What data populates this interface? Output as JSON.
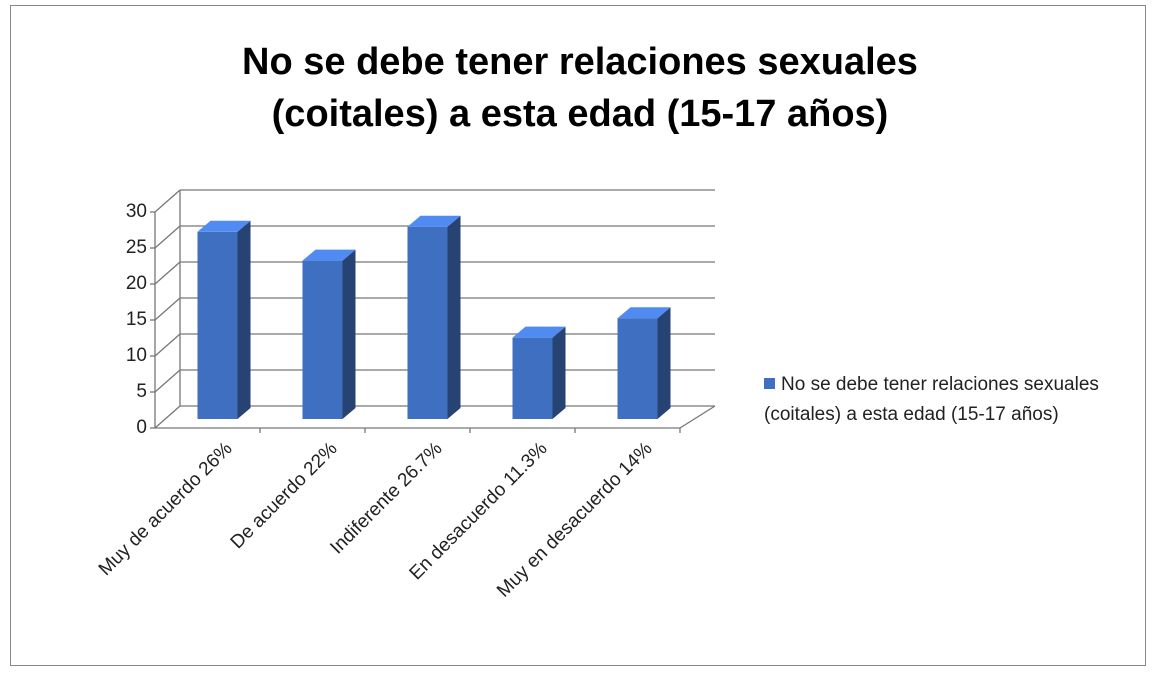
{
  "chart_data": {
    "type": "bar3d",
    "title": "No se debe tener relaciones sexuales (coitales) a esta edad (15-17 años)",
    "categories": [
      "Muy de acuerdo 26%",
      "De acuerdo 22%",
      "Indiferente 26.7%",
      "En desacuerdo 11.3%",
      "Muy en desacuerdo 14%"
    ],
    "series": [
      {
        "name": "No se debe tener relaciones sexuales (coitales) a esta edad (15-17 años)",
        "color": "#3f6fc0",
        "values": [
          26,
          22,
          26.7,
          11.3,
          14
        ]
      }
    ],
    "ylim": [
      0,
      30
    ],
    "yticks": [
      0,
      5,
      10,
      15,
      20,
      25,
      30
    ],
    "grid": true,
    "legend": "right"
  }
}
